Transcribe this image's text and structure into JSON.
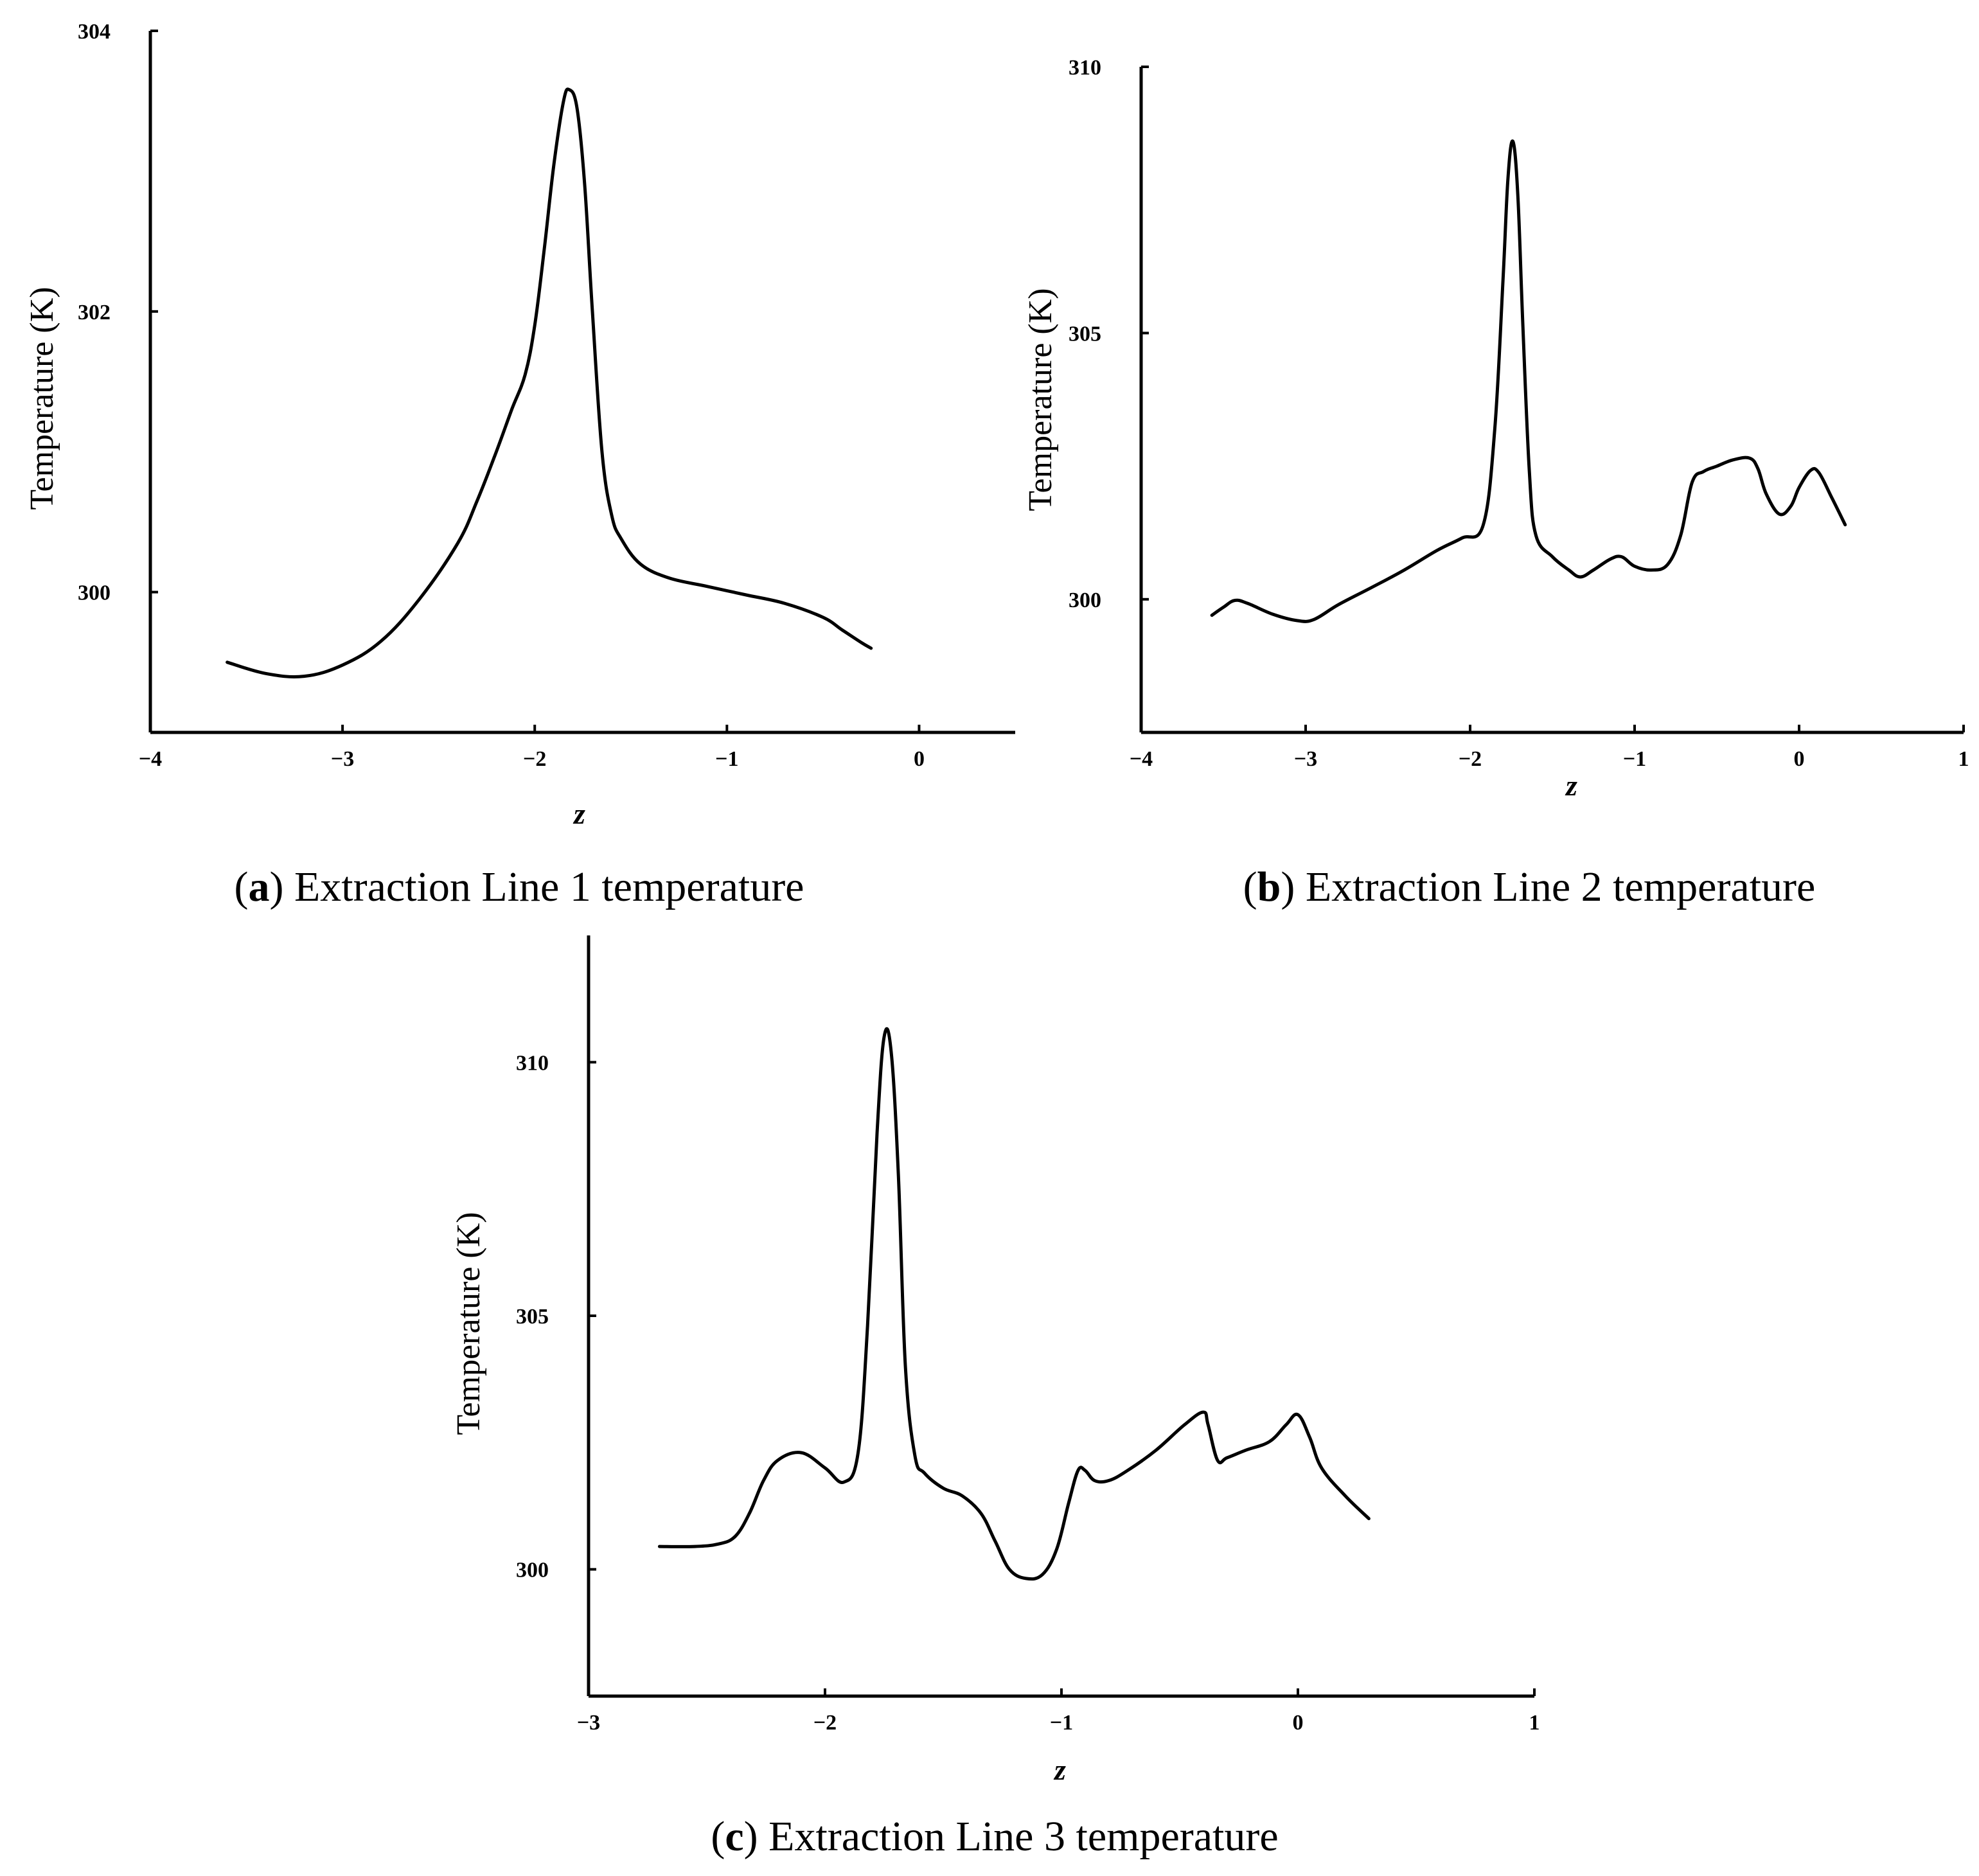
{
  "chart_data": [
    {
      "id": "a",
      "type": "line",
      "title": "Extraction Line 1 temperature",
      "caption_letter": "a",
      "xlabel": "z",
      "ylabel": "Temperature (K)",
      "xlim": [
        -4,
        0.5
      ],
      "ylim": [
        299,
        304
      ],
      "xticks": [
        -4,
        -3,
        -2,
        -1,
        0
      ],
      "xtick_labels": [
        "−4",
        "−3",
        "−2",
        "−1",
        "0"
      ],
      "yticks": [
        300,
        302,
        304
      ],
      "ytick_labels": [
        "300",
        "302",
        "304"
      ],
      "series": [
        {
          "name": "Line 1",
          "x": [
            -3.6,
            -3.4,
            -3.2,
            -3.0,
            -2.8,
            -2.6,
            -2.4,
            -2.3,
            -2.2,
            -2.12,
            -2.05,
            -2.0,
            -1.95,
            -1.9,
            -1.85,
            -1.82,
            -1.78,
            -1.74,
            -1.7,
            -1.65,
            -1.6,
            -1.55,
            -1.45,
            -1.3,
            -1.1,
            -0.9,
            -0.7,
            -0.5,
            -0.4,
            -0.3,
            -0.25
          ],
          "values": [
            299.5,
            299.42,
            299.4,
            299.48,
            299.65,
            299.95,
            300.35,
            300.65,
            301.0,
            301.3,
            301.55,
            301.9,
            302.45,
            303.05,
            303.5,
            303.58,
            303.45,
            302.9,
            302.0,
            301.0,
            300.55,
            300.38,
            300.2,
            300.1,
            300.04,
            299.98,
            299.92,
            299.82,
            299.73,
            299.64,
            299.6
          ]
        }
      ]
    },
    {
      "id": "b",
      "type": "line",
      "title": "Extraction Line 2 temperature",
      "caption_letter": "b",
      "xlabel": "z",
      "ylabel": "Temperature (K)",
      "xlim": [
        -4,
        1
      ],
      "ylim": [
        297.5,
        310
      ],
      "xticks": [
        -4,
        -3,
        -2,
        -1,
        0,
        1
      ],
      "xtick_labels": [
        "−4",
        "−3",
        "−2",
        "−1",
        "0",
        "1"
      ],
      "yticks": [
        300,
        305,
        310
      ],
      "ytick_labels": [
        "300",
        "305",
        "310"
      ],
      "series": [
        {
          "name": "Line 2",
          "x": [
            -3.57,
            -3.5,
            -3.43,
            -3.35,
            -3.2,
            -3.05,
            -2.95,
            -2.8,
            -2.6,
            -2.4,
            -2.2,
            -2.05,
            -1.92,
            -1.85,
            -1.8,
            -1.77,
            -1.74,
            -1.71,
            -1.68,
            -1.64,
            -1.6,
            -1.5,
            -1.4,
            -1.33,
            -1.25,
            -1.15,
            -1.08,
            -1.0,
            -0.9,
            -0.8,
            -0.72,
            -0.65,
            -0.58,
            -0.5,
            -0.4,
            -0.3,
            -0.25,
            -0.2,
            -0.12,
            -0.05,
            0.0,
            0.07,
            0.12,
            0.2,
            0.28
          ],
          "values": [
            299.7,
            299.85,
            299.98,
            299.92,
            299.72,
            299.6,
            299.62,
            299.9,
            300.22,
            300.55,
            300.92,
            301.15,
            301.4,
            303.2,
            306.0,
            307.9,
            308.6,
            307.6,
            305.2,
            302.4,
            301.2,
            300.8,
            300.55,
            300.42,
            300.55,
            300.75,
            300.8,
            300.62,
            300.55,
            300.65,
            301.2,
            302.2,
            302.4,
            302.5,
            302.62,
            302.65,
            302.45,
            301.98,
            301.6,
            301.75,
            302.1,
            302.42,
            302.38,
            301.9,
            301.4
          ]
        }
      ]
    },
    {
      "id": "c",
      "type": "line",
      "title": "Extraction Line 3 temperature",
      "caption_letter": "c",
      "xlabel": "z",
      "ylabel": "Temperature (K)",
      "xlim": [
        -3,
        1
      ],
      "ylim": [
        297.5,
        312.5
      ],
      "xticks": [
        -3,
        -2,
        -1,
        0,
        1
      ],
      "xtick_labels": [
        "−3",
        "−2",
        "−1",
        "0",
        "1"
      ],
      "yticks": [
        300,
        305,
        310
      ],
      "ytick_labels": [
        "300",
        "305",
        "310"
      ],
      "series": [
        {
          "name": "Line 3",
          "x": [
            -2.7,
            -2.55,
            -2.45,
            -2.38,
            -2.32,
            -2.26,
            -2.2,
            -2.1,
            -2.0,
            -1.92,
            -1.86,
            -1.82,
            -1.78,
            -1.75,
            -1.72,
            -1.69,
            -1.66,
            -1.62,
            -1.58,
            -1.5,
            -1.42,
            -1.34,
            -1.28,
            -1.22,
            -1.15,
            -1.08,
            -1.02,
            -0.97,
            -0.93,
            -0.9,
            -0.86,
            -0.8,
            -0.72,
            -0.6,
            -0.48,
            -0.4,
            -0.38,
            -0.34,
            -0.3,
            -0.22,
            -0.12,
            -0.05,
            0.0,
            0.05,
            0.1,
            0.2,
            0.3
          ],
          "values": [
            300.45,
            300.45,
            300.5,
            300.65,
            301.1,
            301.75,
            302.15,
            302.3,
            302.0,
            301.72,
            302.3,
            304.8,
            308.6,
            310.5,
            310.2,
            307.8,
            304.0,
            302.25,
            301.9,
            301.6,
            301.45,
            301.1,
            300.55,
            300.0,
            299.82,
            299.9,
            300.4,
            301.3,
            301.95,
            301.95,
            301.75,
            301.75,
            301.95,
            302.35,
            302.85,
            303.1,
            302.85,
            302.15,
            302.2,
            302.35,
            302.52,
            302.85,
            303.05,
            302.6,
            302.0,
            301.45,
            301.0
          ]
        }
      ]
    }
  ]
}
